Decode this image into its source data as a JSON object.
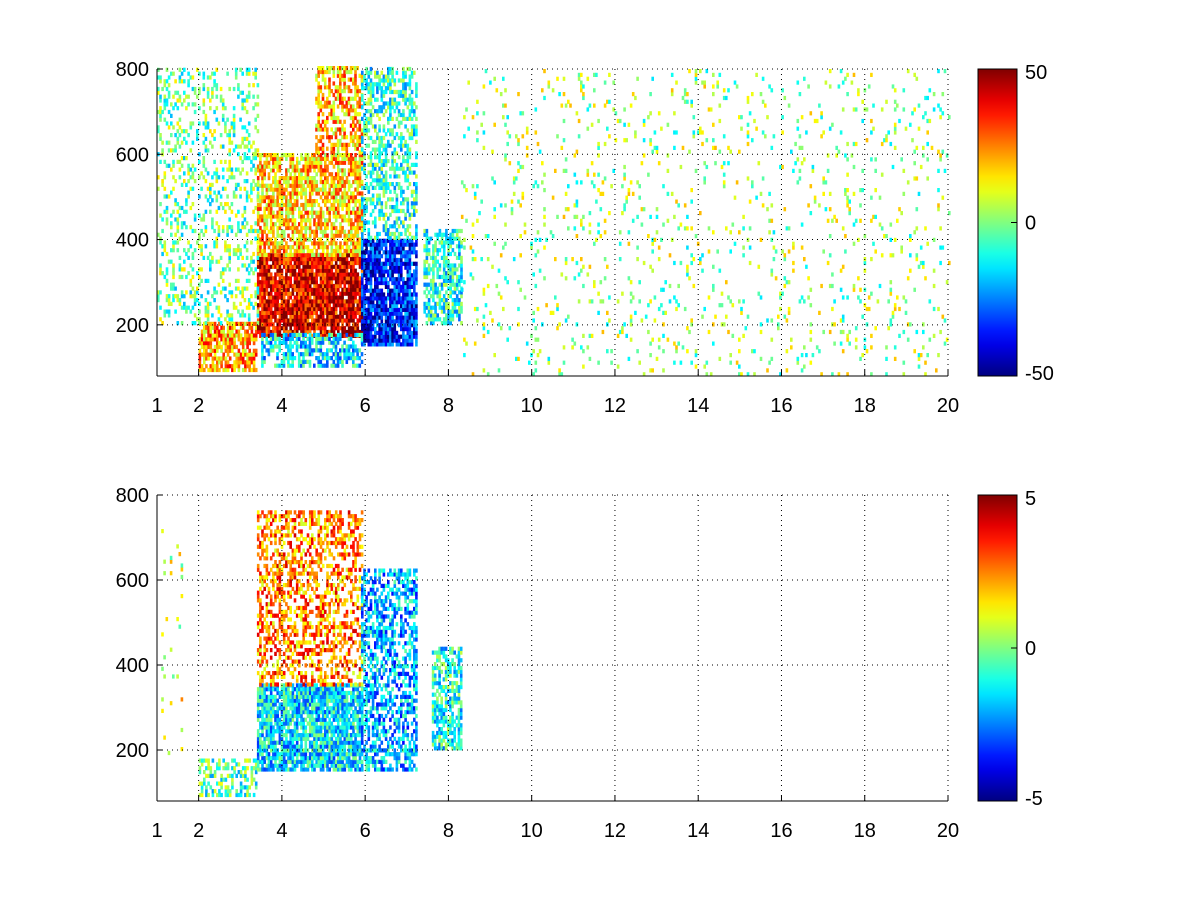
{
  "chart_data": [
    {
      "type": "heatmap",
      "title": "",
      "xlabel": "",
      "ylabel": "",
      "xlim": [
        1,
        20
      ],
      "ylim": [
        80,
        800
      ],
      "x_ticks": [
        1,
        2,
        4,
        6,
        8,
        10,
        12,
        14,
        16,
        18,
        20
      ],
      "y_ticks": [
        200,
        400,
        600,
        800
      ],
      "grid": true,
      "colormap": "jet",
      "colorbar": {
        "min": -50,
        "max": 50,
        "ticks": [
          50,
          0,
          -50
        ]
      },
      "regions": [
        {
          "x": [
            2,
            3.4
          ],
          "y": [
            90,
            200
          ],
          "value": 22,
          "density": 0.75
        },
        {
          "x": [
            3.4,
            5.9
          ],
          "y": [
            170,
            360
          ],
          "value": 40,
          "density": 0.9
        },
        {
          "x": [
            3.5,
            5.9
          ],
          "y": [
            100,
            180
          ],
          "value": -15,
          "density": 0.6
        },
        {
          "x": [
            3.4,
            5.9
          ],
          "y": [
            360,
            600
          ],
          "value": 18,
          "density": 0.7
        },
        {
          "x": [
            4.8,
            5.9
          ],
          "y": [
            600,
            800
          ],
          "value": 20,
          "density": 0.55
        },
        {
          "x": [
            5.9,
            7.2
          ],
          "y": [
            150,
            400
          ],
          "value": -35,
          "density": 0.85
        },
        {
          "x": [
            5.9,
            7.2
          ],
          "y": [
            400,
            800
          ],
          "value": -8,
          "density": 0.5
        },
        {
          "x": [
            7.4,
            8.3
          ],
          "y": [
            200,
            420
          ],
          "value": -10,
          "density": 0.6
        },
        {
          "x": [
            1,
            3.4
          ],
          "y": [
            200,
            800
          ],
          "value": -2,
          "density": 0.25
        },
        {
          "x": [
            8.3,
            20
          ],
          "y": [
            80,
            800
          ],
          "value": 2,
          "density": 0.06
        }
      ]
    },
    {
      "type": "heatmap",
      "title": "",
      "xlabel": "",
      "ylabel": "",
      "xlim": [
        1,
        20
      ],
      "ylim": [
        80,
        800
      ],
      "x_ticks": [
        1,
        2,
        4,
        6,
        8,
        10,
        12,
        14,
        16,
        18,
        20
      ],
      "y_ticks": [
        200,
        400,
        600,
        800
      ],
      "grid": true,
      "colormap": "jet",
      "colorbar": {
        "min": -5,
        "max": 5,
        "ticks": [
          5,
          0,
          -5
        ]
      },
      "regions": [
        {
          "x": [
            2,
            3.4
          ],
          "y": [
            90,
            180
          ],
          "value": -0.5,
          "density": 0.5
        },
        {
          "x": [
            3.4,
            5.9
          ],
          "y": [
            150,
            350
          ],
          "value": -1.5,
          "density": 0.85
        },
        {
          "x": [
            3.4,
            5.9
          ],
          "y": [
            350,
            760
          ],
          "value": 2.5,
          "density": 0.45
        },
        {
          "x": [
            5.9,
            7.2
          ],
          "y": [
            150,
            620
          ],
          "value": -2,
          "density": 0.55
        },
        {
          "x": [
            7.6,
            8.3
          ],
          "y": [
            200,
            440
          ],
          "value": -1,
          "density": 0.65
        },
        {
          "x": [
            1.1,
            1.6
          ],
          "y": [
            180,
            720
          ],
          "value": 1,
          "density": 0.04
        }
      ]
    }
  ]
}
